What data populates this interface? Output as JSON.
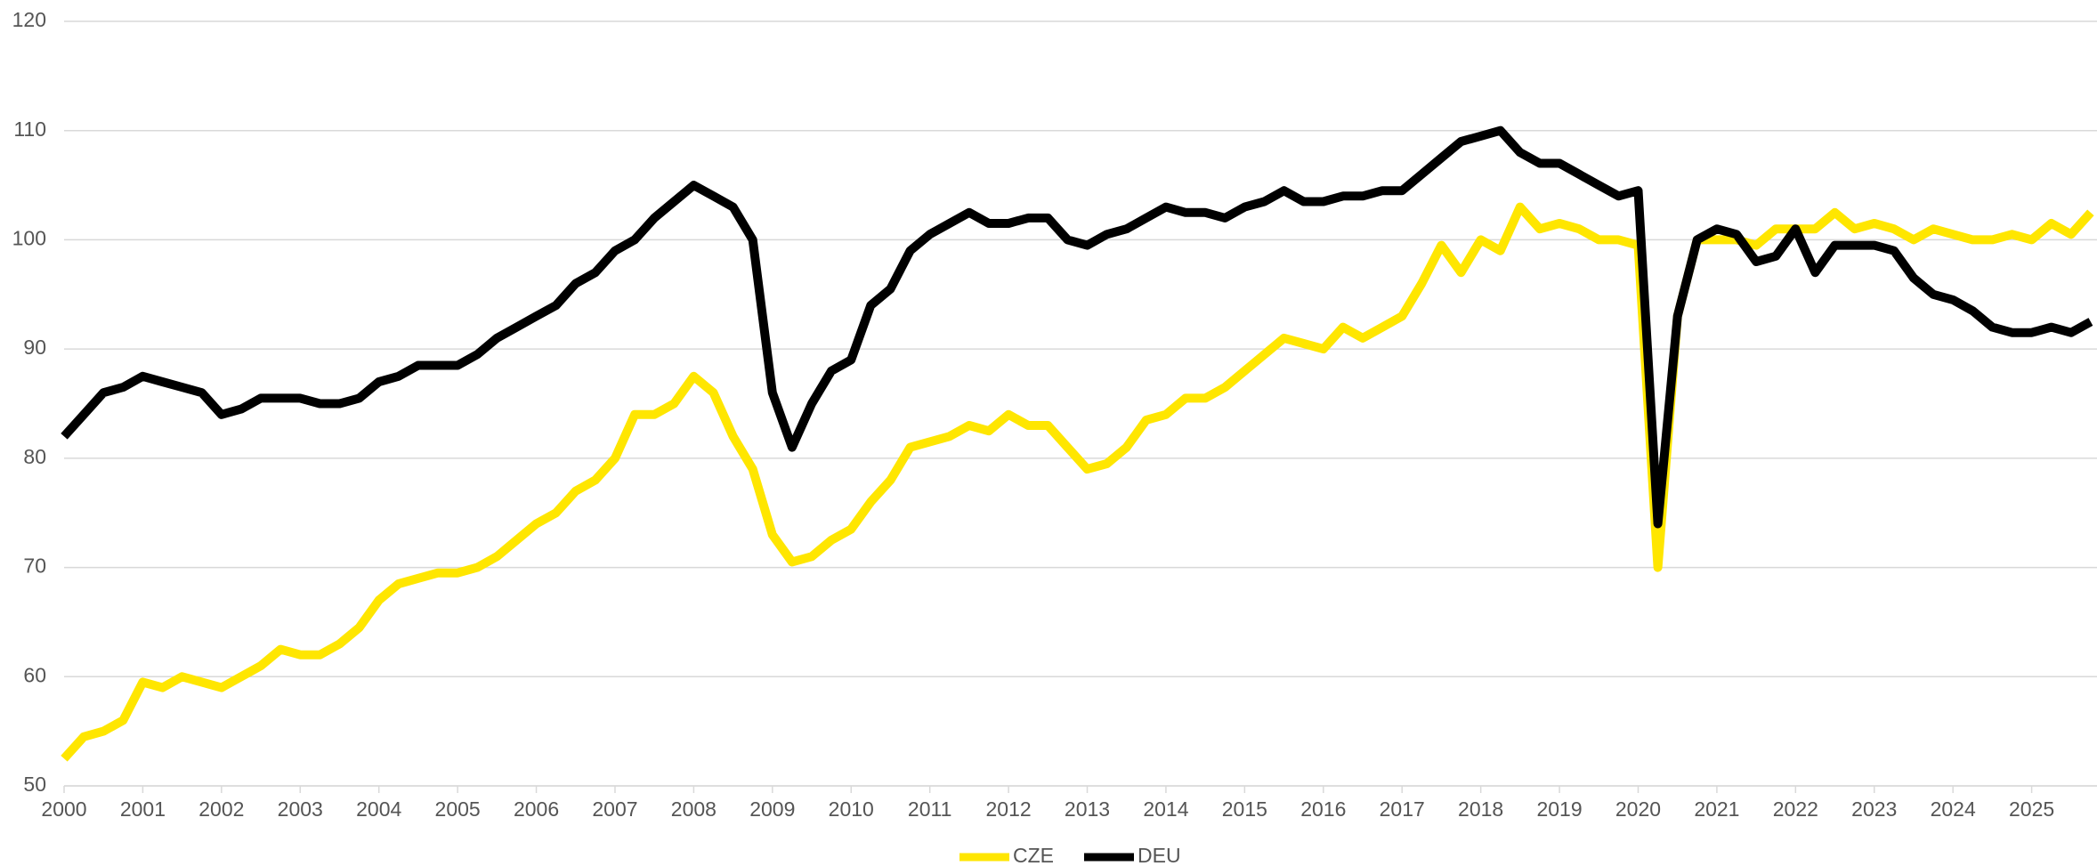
{
  "chart_data": {
    "type": "line",
    "x": [
      2000.0,
      2000.25,
      2000.5,
      2000.75,
      2001.0,
      2001.25,
      2001.5,
      2001.75,
      2002.0,
      2002.25,
      2002.5,
      2002.75,
      2003.0,
      2003.25,
      2003.5,
      2003.75,
      2004.0,
      2004.25,
      2004.5,
      2004.75,
      2005.0,
      2005.25,
      2005.5,
      2005.75,
      2006.0,
      2006.25,
      2006.5,
      2006.75,
      2007.0,
      2007.25,
      2007.5,
      2007.75,
      2008.0,
      2008.25,
      2008.5,
      2008.75,
      2009.0,
      2009.25,
      2009.5,
      2009.75,
      2010.0,
      2010.25,
      2010.5,
      2010.75,
      2011.0,
      2011.25,
      2011.5,
      2011.75,
      2012.0,
      2012.25,
      2012.5,
      2012.75,
      2013.0,
      2013.25,
      2013.5,
      2013.75,
      2014.0,
      2014.25,
      2014.5,
      2014.75,
      2015.0,
      2015.25,
      2015.5,
      2015.75,
      2016.0,
      2016.25,
      2016.5,
      2016.75,
      2017.0,
      2017.25,
      2017.5,
      2017.75,
      2018.0,
      2018.25,
      2018.5,
      2018.75,
      2019.0,
      2019.25,
      2019.5,
      2019.75,
      2020.0,
      2020.25,
      2020.5,
      2020.75,
      2021.0,
      2021.25,
      2021.5,
      2021.75,
      2022.0,
      2022.25,
      2022.5,
      2022.75,
      2023.0,
      2023.25,
      2023.5,
      2023.75,
      2024.0,
      2024.25,
      2024.5,
      2024.75,
      2025.0,
      2025.25,
      2025.5,
      2025.75
    ],
    "series": [
      {
        "name": "CZE",
        "color": "#ffe600",
        "values": [
          52.5,
          54.5,
          55,
          56,
          59.5,
          59,
          60,
          59.5,
          59,
          60,
          61,
          62.5,
          62,
          62,
          63,
          64.5,
          67,
          68.5,
          69,
          69.5,
          69.5,
          70,
          71,
          72.5,
          74,
          75,
          77,
          78,
          80,
          84,
          84,
          85,
          87.5,
          86,
          82,
          79,
          73,
          70.5,
          71,
          72.5,
          73.5,
          76,
          78,
          81,
          81.5,
          82,
          83,
          82.5,
          84,
          83,
          83,
          81,
          79,
          79.5,
          81,
          83.5,
          84,
          85.5,
          85.5,
          86.5,
          88,
          89.5,
          91,
          90.5,
          90,
          92,
          91,
          92,
          93,
          96,
          99.5,
          97,
          100,
          99,
          103,
          101,
          101.5,
          101,
          100,
          100,
          99.5,
          70,
          93,
          100,
          100,
          100,
          99.5,
          101,
          101,
          101,
          102.5,
          101,
          101.5,
          101,
          100,
          101,
          100.5,
          100,
          100,
          100.5,
          100,
          101.5,
          100.5,
          102.5
        ]
      },
      {
        "name": "DEU",
        "color": "#000000",
        "values": [
          82,
          84,
          86,
          86.5,
          87.5,
          87,
          86.5,
          86,
          84,
          84.5,
          85.5,
          85.5,
          85.5,
          85,
          85,
          85.5,
          87,
          87.5,
          88.5,
          88.5,
          88.5,
          89.5,
          91,
          92,
          93,
          94,
          96,
          97,
          99,
          100,
          102,
          103.5,
          105,
          104,
          103,
          100,
          86,
          81,
          85,
          88,
          89,
          94,
          95.5,
          99,
          100.5,
          101.5,
          102.5,
          101.5,
          101.5,
          102,
          102,
          100,
          99.5,
          100.5,
          101,
          102,
          103,
          102.5,
          102.5,
          102,
          103,
          103.5,
          104.5,
          103.5,
          103.5,
          104,
          104,
          104.5,
          104.5,
          106,
          107.5,
          109,
          109.5,
          110,
          108,
          107,
          107,
          106,
          105,
          104,
          104.5,
          74,
          93,
          100,
          101,
          100.5,
          98,
          98.5,
          101,
          97,
          99.5,
          99.5,
          99.5,
          99,
          96.5,
          95,
          94.5,
          93.5,
          92,
          91.5,
          91.5,
          92,
          91.5,
          92.5
        ]
      }
    ],
    "xlim": [
      2000,
      2025.83
    ],
    "xticks": [
      2000,
      2001,
      2002,
      2003,
      2004,
      2005,
      2006,
      2007,
      2008,
      2009,
      2010,
      2011,
      2012,
      2013,
      2014,
      2015,
      2016,
      2017,
      2018,
      2019,
      2020,
      2021,
      2022,
      2023,
      2024,
      2025
    ],
    "ylim": [
      50,
      120
    ],
    "yticks": [
      50,
      60,
      70,
      80,
      90,
      100,
      110,
      120
    ],
    "grid": true,
    "legend": "bottom"
  }
}
